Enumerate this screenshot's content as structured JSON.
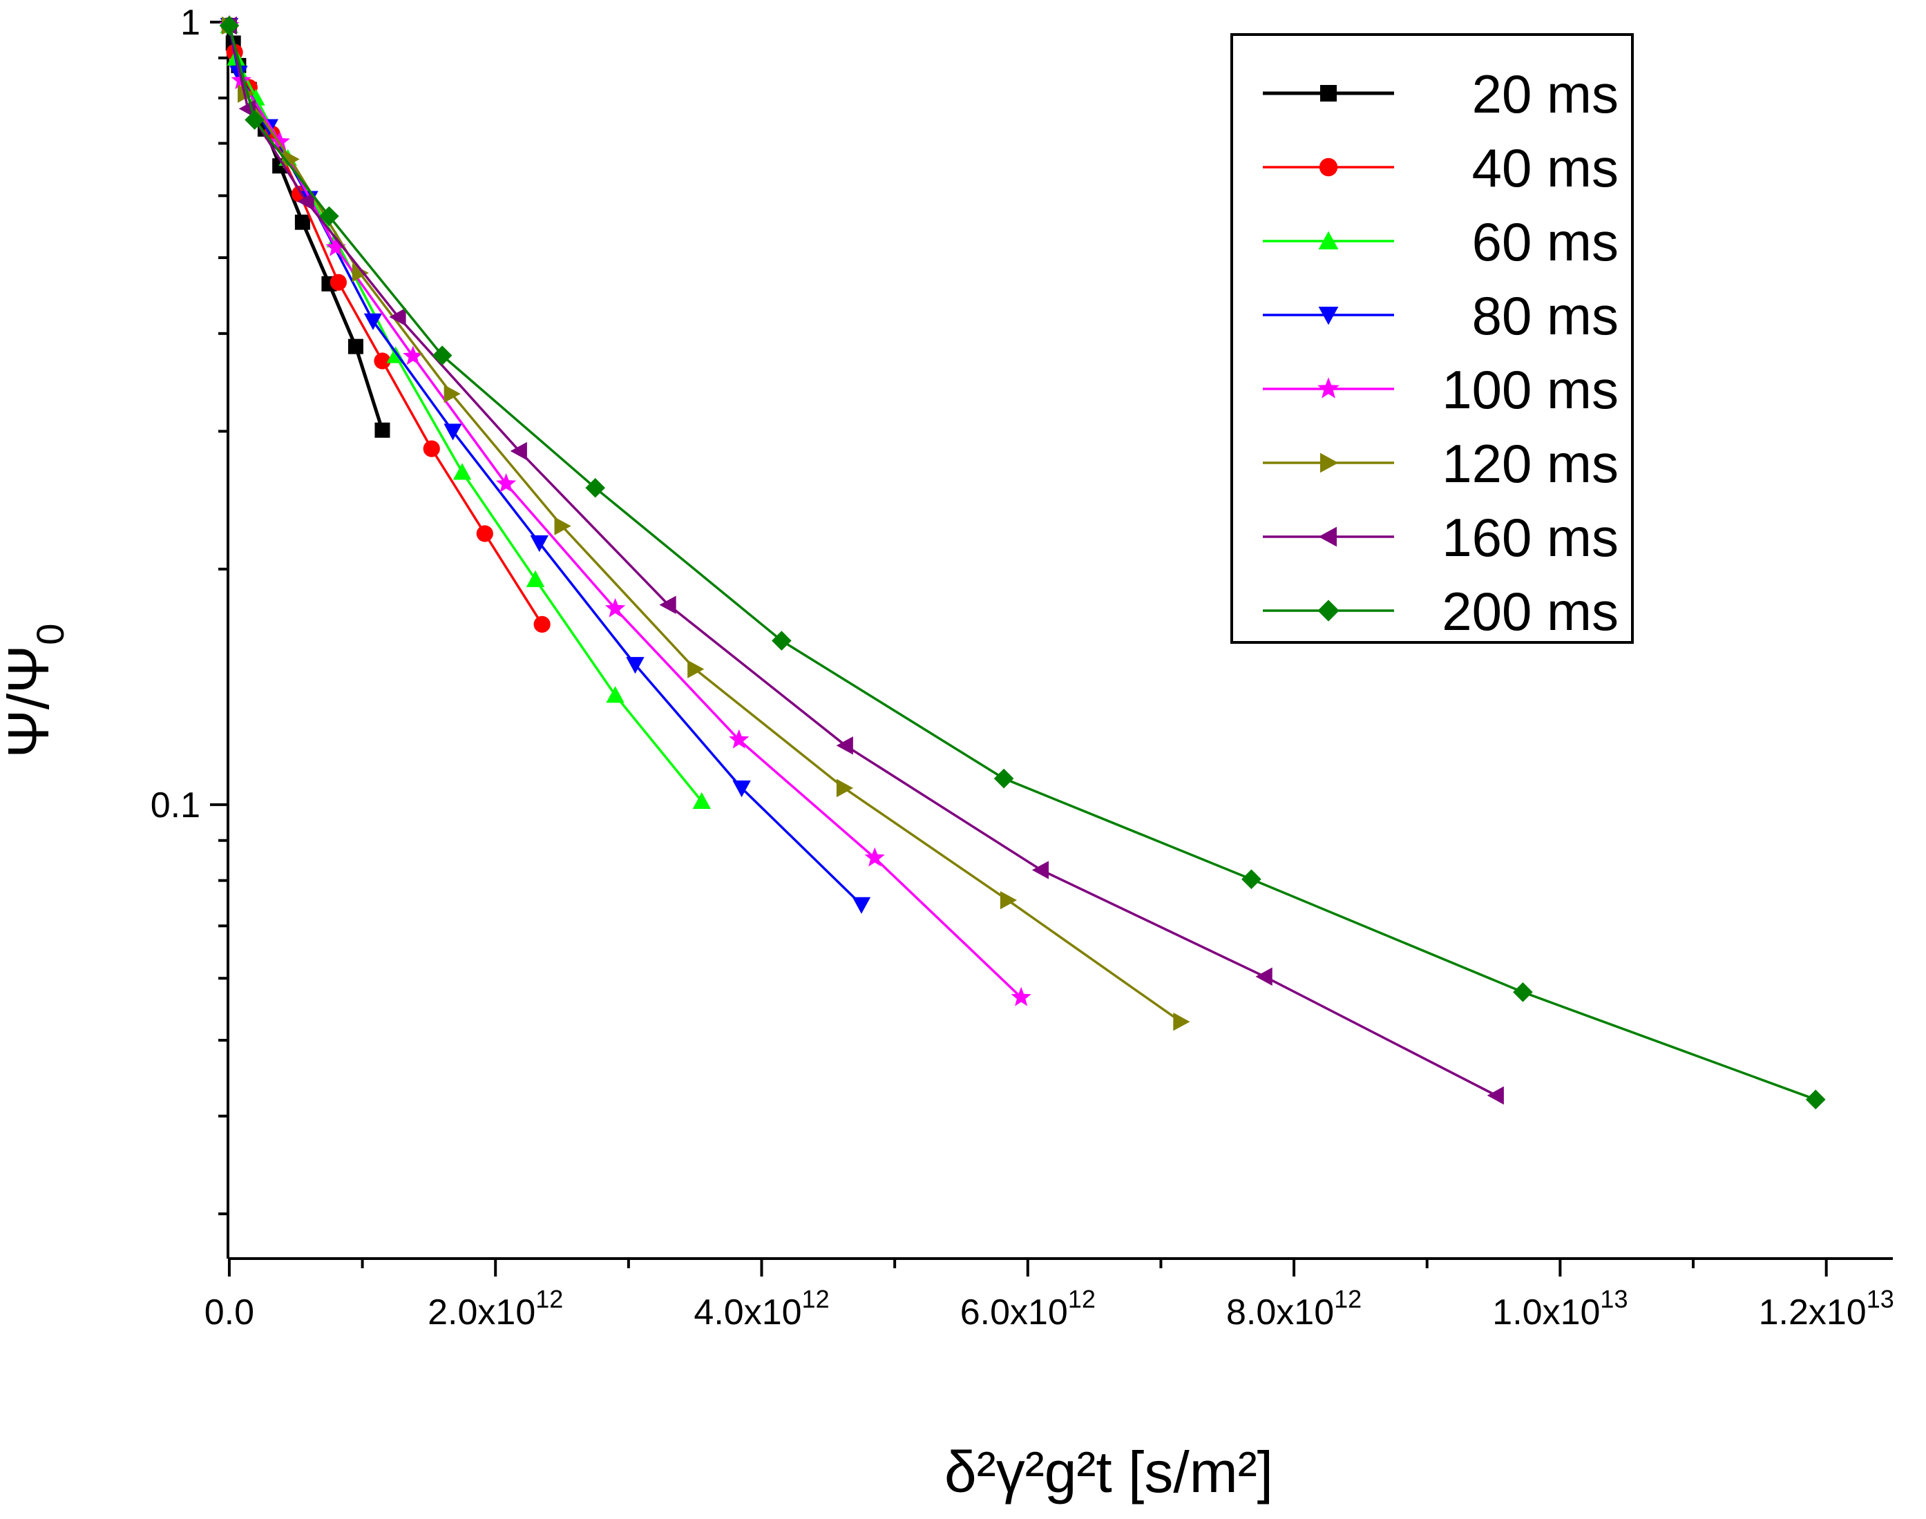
{
  "chart_data": {
    "type": "scatter",
    "xlabel": "δ²γ²g²t  [s/m²]",
    "ylabel": "Ψ/Ψ0",
    "xlim": [
      -10000000000.0,
      12500000000000.0
    ],
    "ylim": [
      0.0263,
      1.0
    ],
    "yscale": "log",
    "grid": false,
    "legend_position": "top-right",
    "x_ticks": [
      {
        "value": 0,
        "mantissa": "0.0",
        "exp": ""
      },
      {
        "value": 2000000000000.0,
        "mantissa": "2.0x10",
        "exp": "12"
      },
      {
        "value": 4000000000000.0,
        "mantissa": "4.0x10",
        "exp": "12"
      },
      {
        "value": 6000000000000.0,
        "mantissa": "6.0x10",
        "exp": "12"
      },
      {
        "value": 8000000000000.0,
        "mantissa": "8.0x10",
        "exp": "12"
      },
      {
        "value": 10000000000000.0,
        "mantissa": "1.0x10",
        "exp": "13"
      },
      {
        "value": 12000000000000.0,
        "mantissa": "1.2x10",
        "exp": "13"
      }
    ],
    "y_ticks": [
      {
        "value": 1,
        "label": "1"
      },
      {
        "value": 0.1,
        "label": "0.1"
      }
    ],
    "series": [
      {
        "name": "20 ms",
        "color": "#000000",
        "marker": "square",
        "x": [
          0,
          30000000000.0,
          70000000000.0,
          150000000000.0,
          270000000000.0,
          380000000000.0,
          550000000000.0,
          750000000000.0,
          950000000000.0,
          1150000000000.0
        ],
        "y": [
          0.99,
          0.94,
          0.88,
          0.82,
          0.73,
          0.655,
          0.555,
          0.463,
          0.385,
          0.301
        ]
      },
      {
        "name": "40 ms",
        "color": "#ff0000",
        "marker": "circle",
        "x": [
          0,
          40000000000.0,
          150000000000.0,
          320000000000.0,
          530000000000.0,
          820000000000.0,
          1150000000000.0,
          1520000000000.0,
          1920000000000.0,
          2350000000000.0
        ],
        "y": [
          0.99,
          0.915,
          0.825,
          0.72,
          0.603,
          0.465,
          0.369,
          0.285,
          0.222,
          0.17
        ]
      },
      {
        "name": "60 ms",
        "color": "#00ff00",
        "marker": "triangle-up",
        "x": [
          0,
          50000000000.0,
          200000000000.0,
          440000000000.0,
          800000000000.0,
          1250000000000.0,
          1750000000000.0,
          2300000000000.0,
          2900000000000.0,
          3550000000000.0
        ],
        "y": [
          0.99,
          0.9,
          0.8,
          0.67,
          0.527,
          0.375,
          0.266,
          0.194,
          0.138,
          0.101
        ]
      },
      {
        "name": "80 ms",
        "color": "#0000ff",
        "marker": "triangle-down",
        "x": [
          0,
          70000000000.0,
          300000000000.0,
          600000000000.0,
          1080000000000.0,
          1680000000000.0,
          2330000000000.0,
          3050000000000.0,
          3850000000000.0,
          4750000000000.0
        ],
        "y": [
          0.99,
          0.86,
          0.735,
          0.595,
          0.415,
          0.3,
          0.216,
          0.151,
          0.105,
          0.0745
        ]
      },
      {
        "name": "100 ms",
        "color": "#ff00ff",
        "marker": "star",
        "x": [
          0,
          90000000000.0,
          380000000000.0,
          800000000000.0,
          1380000000000.0,
          2080000000000.0,
          2900000000000.0,
          3830000000000.0,
          4850000000000.0,
          5950000000000.0
        ],
        "y": [
          0.99,
          0.842,
          0.703,
          0.515,
          0.374,
          0.257,
          0.178,
          0.121,
          0.0855,
          0.0567
        ]
      },
      {
        "name": "120 ms",
        "color": "#808000",
        "marker": "triangle-right",
        "x": [
          0,
          120000000000.0,
          460000000000.0,
          980000000000.0,
          1670000000000.0,
          2500000000000.0,
          3500000000000.0,
          4620000000000.0,
          5850000000000.0,
          7150000000000.0
        ],
        "y": [
          0.99,
          0.81,
          0.668,
          0.478,
          0.335,
          0.227,
          0.149,
          0.105,
          0.0755,
          0.0528
        ]
      },
      {
        "name": "160 ms",
        "color": "#800080",
        "marker": "triangle-left",
        "x": [
          0,
          140000000000.0,
          580000000000.0,
          1270000000000.0,
          2180000000000.0,
          3300000000000.0,
          4630000000000.0,
          6100000000000.0,
          7780000000000.0,
          9520000000000.0
        ],
        "y": [
          0.99,
          0.775,
          0.59,
          0.42,
          0.283,
          0.18,
          0.119,
          0.0825,
          0.0603,
          0.0425
        ]
      },
      {
        "name": "200 ms",
        "color": "#008000",
        "marker": "diamond",
        "x": [
          0,
          190000000000.0,
          750000000000.0,
          1600000000000.0,
          2750000000000.0,
          4150000000000.0,
          5820000000000.0,
          7680000000000.0,
          9720000000000.0,
          11920000000000.0
        ],
        "y": [
          0.99,
          0.75,
          0.565,
          0.375,
          0.254,
          0.162,
          0.108,
          0.0803,
          0.0576,
          0.042
        ]
      }
    ]
  }
}
